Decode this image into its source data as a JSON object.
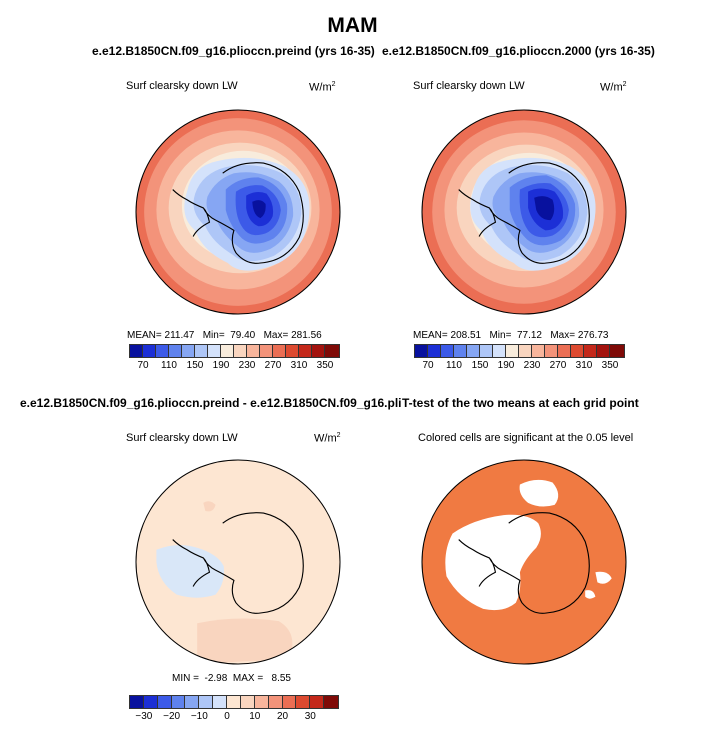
{
  "figure": {
    "title": "MAM"
  },
  "panels": [
    {
      "title": "e.e12.B1850CN.f09_g16.plioccn.preind (yrs 16-35)",
      "left_label": "Surf clearsky down LW",
      "units": "W/m",
      "units_exp": "2",
      "stats": {
        "mean_label": "MEAN=",
        "mean": "211.47",
        "min_label": "Min=",
        "min": "79.40",
        "max_label": "Max=",
        "max": "281.56"
      }
    },
    {
      "title": "e.e12.B1850CN.f09_g16.plioccn.2000 (yrs 16-35)",
      "left_label": "Surf clearsky down LW",
      "units": "W/m",
      "units_exp": "2",
      "stats": {
        "mean_label": "MEAN=",
        "mean": "208.51",
        "min_label": "Min=",
        "min": "77.12",
        "max_label": "Max=",
        "max": "276.73"
      }
    },
    {
      "title": "e.e12.B1850CN.f09_g16.plioccn.preind - e.e12.B1850CN.f09_g16.plioccn.2000",
      "left_label": "Surf clearsky down LW",
      "units": "W/m",
      "units_exp": "2",
      "stats": {
        "min_label": "MIN =",
        "min": "-2.98",
        "max_label": "MAX =",
        "max": "8.55"
      }
    },
    {
      "title": "T-test of the two means at each grid point",
      "center_label": "Colored cells are significant at the 0.05 level"
    }
  ],
  "colorbars": {
    "abs": {
      "ticks": [
        "70",
        "110",
        "150",
        "190",
        "230",
        "270",
        "310",
        "350"
      ],
      "colors": [
        "#08119e",
        "#1c2fd6",
        "#3c5ae8",
        "#5f82ee",
        "#86a6f3",
        "#aec6f7",
        "#d4e2fb",
        "#f8ecdc",
        "#f9d5bf",
        "#f8b59c",
        "#f3937a",
        "#eb6e54",
        "#dd4a30",
        "#c4281a",
        "#a3130e",
        "#7f0a07"
      ]
    },
    "diff": {
      "ticks": [
        "−30",
        "−20",
        "−10",
        "0",
        "10",
        "20",
        "30"
      ],
      "colors": [
        "#08119e",
        "#1c2fd6",
        "#3c5ae8",
        "#5f82ee",
        "#86a6f3",
        "#aec6f7",
        "#d4e2fb",
        "#fde6d2",
        "#f9d5bf",
        "#f8b59c",
        "#f3937a",
        "#eb6e54",
        "#dd4a30",
        "#c4281a",
        "#7f0a07"
      ]
    }
  },
  "chart_data": [
    {
      "type": "heatmap",
      "title": "e.e12.B1850CN.f09_g16.plioccn.preind (yrs 16-35)",
      "variable": "Surf clearsky down LW",
      "units": "W/m2",
      "projection": "south polar stereographic",
      "contour_levels": [
        70,
        90,
        110,
        130,
        150,
        170,
        190,
        210,
        230,
        250,
        270,
        290,
        310,
        330,
        350
      ],
      "mean": 211.47,
      "min": 79.4,
      "max": 281.56
    },
    {
      "type": "heatmap",
      "title": "e.e12.B1850CN.f09_g16.plioccn.2000 (yrs 16-35)",
      "variable": "Surf clearsky down LW",
      "units": "W/m2",
      "projection": "south polar stereographic",
      "contour_levels": [
        70,
        90,
        110,
        130,
        150,
        170,
        190,
        210,
        230,
        250,
        270,
        290,
        310,
        330,
        350
      ],
      "mean": 208.51,
      "min": 77.12,
      "max": 276.73
    },
    {
      "type": "heatmap",
      "title": "e.e12.B1850CN.f09_g16.plioccn.preind - e.e12.B1850CN.f09_g16.plioccn.2000",
      "variable": "Surf clearsky down LW",
      "units": "W/m2",
      "projection": "south polar stereographic",
      "contour_levels": [
        -35,
        -30,
        -25,
        -20,
        -15,
        -10,
        -5,
        0,
        5,
        10,
        15,
        20,
        25,
        30,
        35
      ],
      "min": -2.98,
      "max": 8.55
    },
    {
      "type": "heatmap",
      "title": "T-test of the two means at each grid point",
      "note": "Colored cells are significant at the 0.05 level",
      "projection": "south polar stereographic"
    }
  ]
}
